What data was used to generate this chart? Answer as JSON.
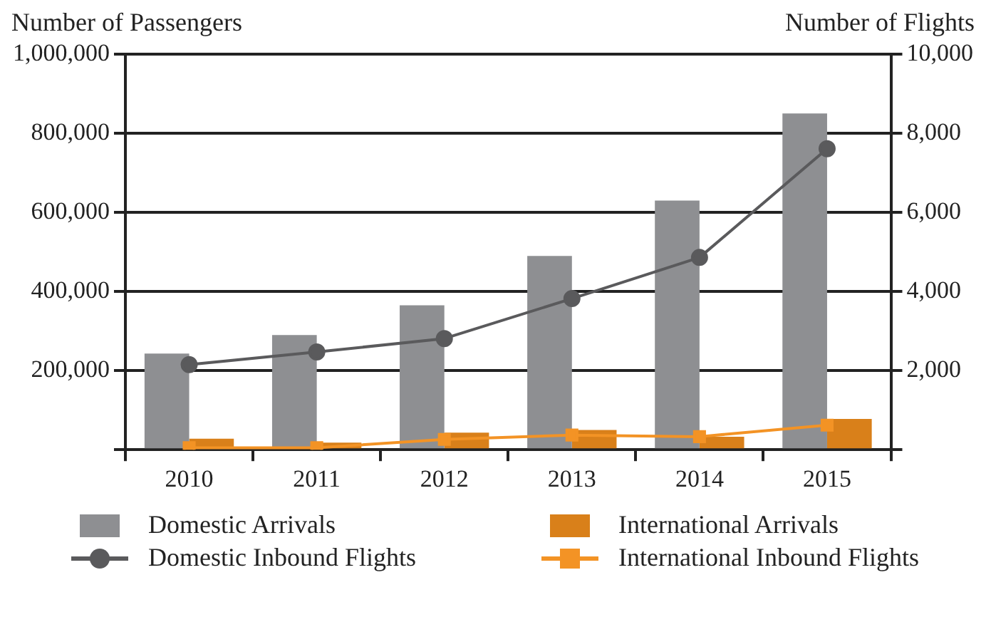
{
  "chart_data": {
    "type": "bar",
    "ylabel": "Number of Passengers",
    "y2label": "Number of Flights",
    "categories": [
      "2010",
      "2011",
      "2012",
      "2013",
      "2014",
      "2015"
    ],
    "series": [
      {
        "name": "Domestic Arrivals",
        "color": "#8e8f92",
        "values": [
          243000,
          290000,
          365000,
          490000,
          630000,
          850000
        ]
      },
      {
        "name": "International Arrivals",
        "color": "#d9801a",
        "values": [
          28000,
          18000,
          43000,
          50000,
          33000,
          78000
        ]
      },
      {
        "name": "Domestic Inbound Flights",
        "type": "line",
        "axis": "y2",
        "marker": "circle",
        "color": "#5a5a5c",
        "values": [
          2150,
          2470,
          2810,
          3820,
          4860,
          7610
        ]
      },
      {
        "name": "International Inbound Flights",
        "type": "line",
        "axis": "y2",
        "marker": "square",
        "color": "#f39325",
        "values": [
          50,
          50,
          260,
          370,
          330,
          620
        ]
      }
    ],
    "ylim": [
      0,
      1000000
    ],
    "yticks": [
      {
        "value": 0,
        "label": null
      },
      {
        "value": 200000,
        "label": "200,000"
      },
      {
        "value": 400000,
        "label": "400,000"
      },
      {
        "value": 600000,
        "label": "600,000"
      },
      {
        "value": 800000,
        "label": "800,000"
      },
      {
        "value": 1000000,
        "label": "1,000,000"
      }
    ],
    "y2lim": [
      0,
      10000
    ],
    "y2ticks": [
      {
        "value": 0,
        "label": null
      },
      {
        "value": 2000,
        "label": "2,000"
      },
      {
        "value": 4000,
        "label": "4,000"
      },
      {
        "value": 6000,
        "label": "6,000"
      },
      {
        "value": 8000,
        "label": "8,000"
      },
      {
        "value": 10000,
        "label": "10,000"
      }
    ],
    "grid": "y",
    "legend": "bottom"
  }
}
